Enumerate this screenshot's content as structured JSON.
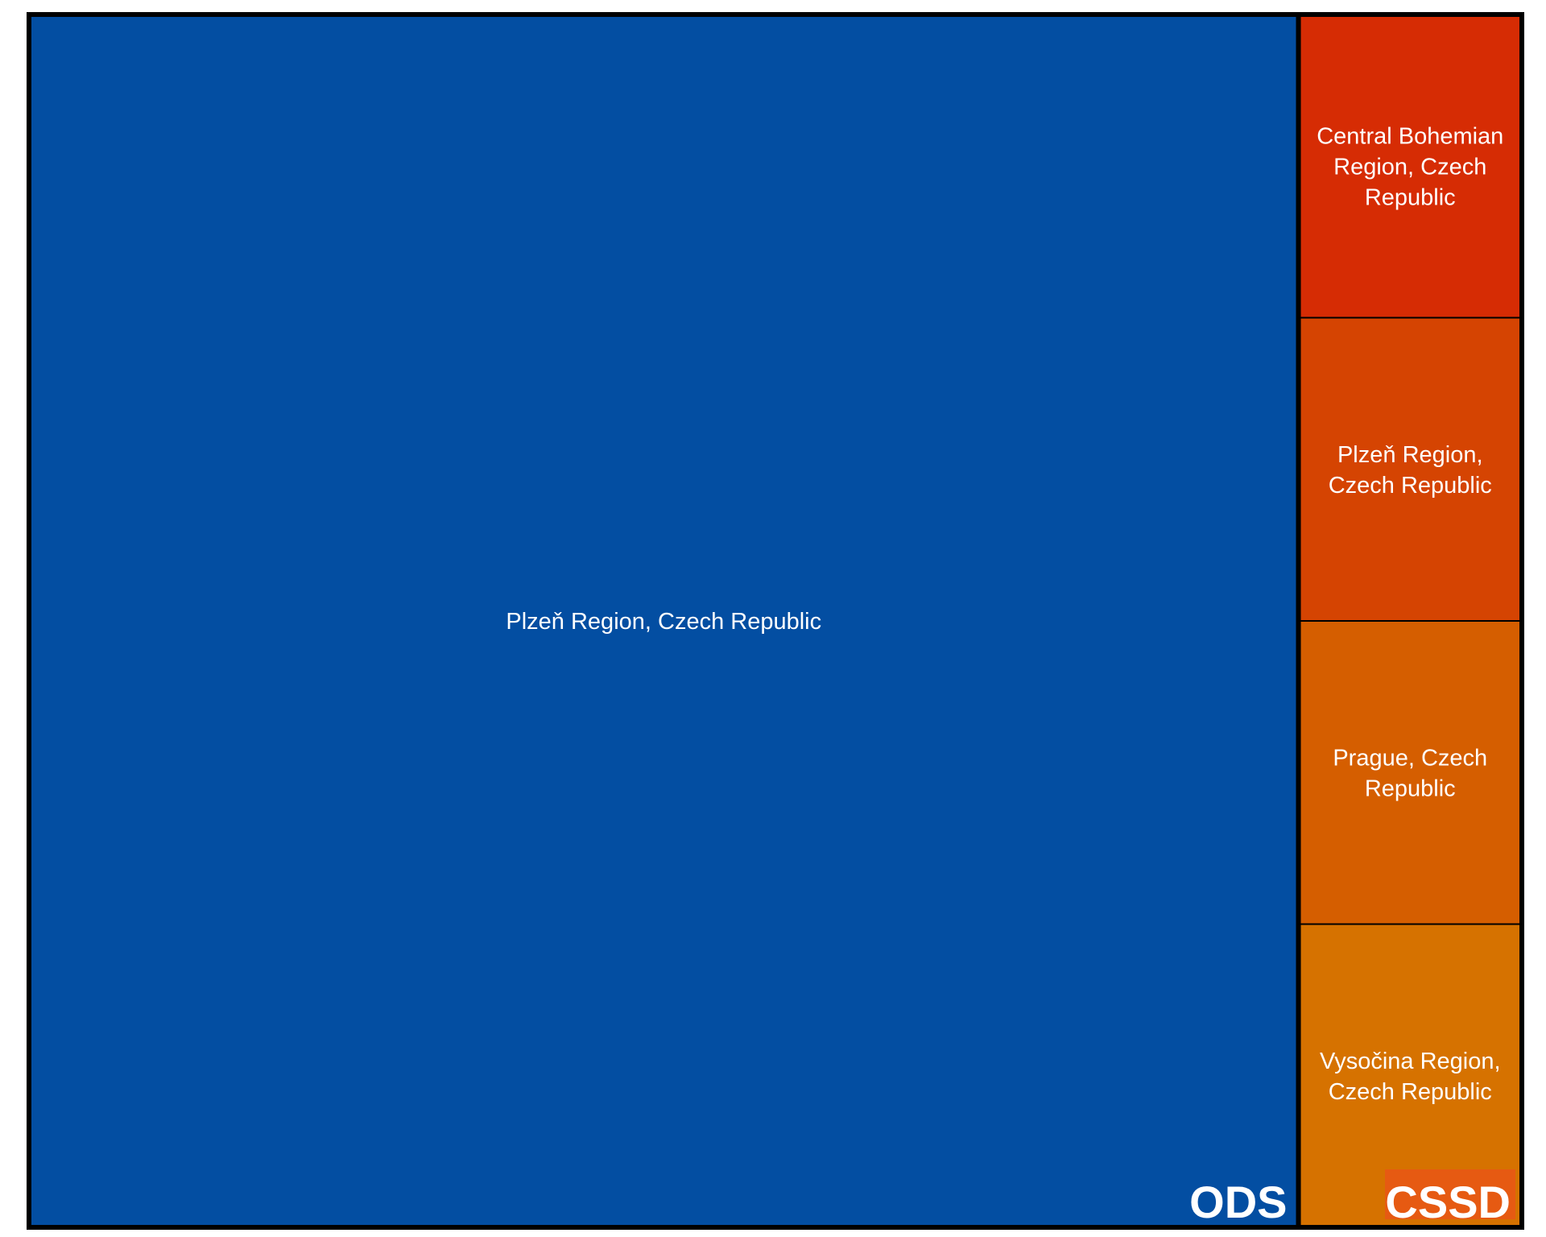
{
  "chart_data": {
    "type": "treemap",
    "title": "",
    "groups": [
      {
        "name": "ODS",
        "color": "#034EA2",
        "children": [
          {
            "label": "Plzeň Region, Czech Republic",
            "lines": [
              "Plzeň Region, Czech Republic"
            ],
            "value": 100,
            "color": "#034EA2"
          }
        ]
      },
      {
        "name": "CSSD",
        "color": "#E65A12",
        "children": [
          {
            "label": "Central Bohemian Region, Czech Republic",
            "lines": [
              "Central Bohemian",
              "Region, Czech",
              "Republic"
            ],
            "value": 4.4,
            "color": "#D62C04"
          },
          {
            "label": "Plzeň Region, Czech Republic",
            "lines": [
              "Plzeň Region,",
              "Czech Republic"
            ],
            "value": 4.4,
            "color": "#D54402"
          },
          {
            "label": "Prague, Czech Republic",
            "lines": [
              "Prague, Czech",
              "Republic"
            ],
            "value": 4.4,
            "color": "#D55E00"
          },
          {
            "label": "Vysočina Region, Czech Republic",
            "lines": [
              "Vysočina Region,",
              "Czech Republic"
            ],
            "value": 4.4,
            "color": "#D67200"
          }
        ]
      }
    ]
  }
}
